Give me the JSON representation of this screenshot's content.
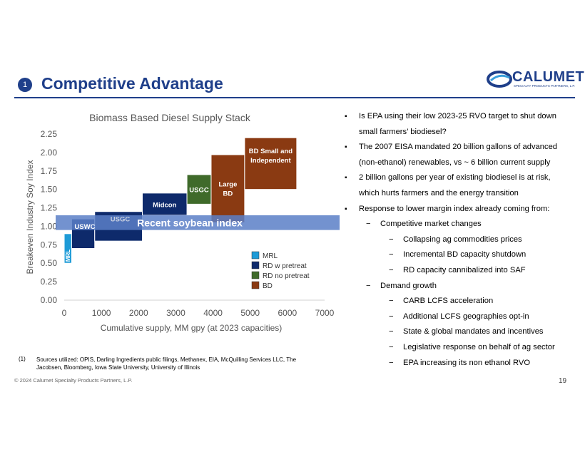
{
  "header": {
    "badge": "1",
    "title": "Competitive Advantage",
    "logo_text": "CALUMET",
    "logo_sub": "SPECIALTY PRODUCTS PARTNERS, L.P."
  },
  "colors": {
    "brand": "#1f3f8a",
    "mrl": "#1e9bd7",
    "rd_pretreat": "#0e2a6b",
    "rd_no_pretreat": "#3f6a2a",
    "bd": "#8a3a12",
    "band": "#5b7fc7"
  },
  "chart_data": {
    "type": "bar",
    "title": "Biomass Based Diesel Supply Stack",
    "xlabel": "Cumulative supply, MM gpy (at 2023 capacities)",
    "ylabel": "Breakeven Industry Soy Index",
    "xlim": [
      0,
      7000
    ],
    "ylim": [
      0,
      2.25
    ],
    "x_ticks": [
      "0",
      "1000",
      "2000",
      "3000",
      "4000",
      "5000",
      "6000",
      "7000"
    ],
    "y_ticks": [
      "0.00",
      "0.25",
      "0.50",
      "0.75",
      "1.00",
      "1.25",
      "1.50",
      "1.75",
      "2.00",
      "2.25"
    ],
    "band": {
      "label": "Recent soybean index",
      "y_low": 0.95,
      "y_high": 1.15
    },
    "blocks": [
      {
        "label": "MRL",
        "category": "MRL",
        "x_start": 0,
        "x_end": 200,
        "y_low": 0.5,
        "y_high": 0.9
      },
      {
        "label": "USWC",
        "category": "RD w pretreat",
        "x_start": 200,
        "x_end": 820,
        "y_low": 0.7,
        "y_high": 1.1
      },
      {
        "label": "USGC",
        "category": "RD w pretreat",
        "x_start": 820,
        "x_end": 2100,
        "y_low": 0.8,
        "y_high": 1.2
      },
      {
        "label": "Midcon",
        "category": "RD w pretreat",
        "x_start": 2100,
        "x_end": 3300,
        "y_low": 1.15,
        "y_high": 1.45
      },
      {
        "label": "USGC",
        "category": "RD no pretreat",
        "x_start": 3300,
        "x_end": 3950,
        "y_low": 1.3,
        "y_high": 1.7
      },
      {
        "label": "Large BD",
        "category": "BD",
        "x_start": 3950,
        "x_end": 4850,
        "y_low": 1.05,
        "y_high": 1.97
      },
      {
        "label": "BD Small and Independent",
        "category": "BD",
        "x_start": 4850,
        "x_end": 6250,
        "y_low": 1.5,
        "y_high": 2.2
      }
    ],
    "legend": [
      "MRL",
      "RD w pretreat",
      "RD no pretreat",
      "BD"
    ],
    "legend_position": "bottom-right"
  },
  "bullets": [
    {
      "level": 0,
      "text": "Is EPA using their low 2023-25 RVO target to shut down small farmers’ biodiesel?"
    },
    {
      "level": 0,
      "text": "The 2007 EISA mandated 20 billion gallons of advanced (non-ethanol) renewables, vs ~ 6 billion current supply"
    },
    {
      "level": 0,
      "text": "2 billion gallons per year of existing biodiesel is at risk, which hurts farmers and the energy transition"
    },
    {
      "level": 0,
      "text": "Response to lower margin index already coming from:"
    },
    {
      "level": 1,
      "text": "Competitive market changes"
    },
    {
      "level": 2,
      "text": "Collapsing ag commodities prices"
    },
    {
      "level": 2,
      "text": "Incremental BD capacity shutdown"
    },
    {
      "level": 2,
      "text": "RD capacity cannibalized into SAF"
    },
    {
      "level": 1,
      "text": "Demand growth"
    },
    {
      "level": 2,
      "text": "CARB LCFS acceleration"
    },
    {
      "level": 2,
      "text": "Additional LCFS geographies opt-in"
    },
    {
      "level": 2,
      "text": "State & global mandates and incentives"
    },
    {
      "level": 2,
      "text": "Legislative response on behalf of ag sector"
    },
    {
      "level": 2,
      "text": "EPA increasing its non ethanol RVO"
    }
  ],
  "footnote": {
    "num": "(1)",
    "text": "Sources utilized:  OPIS, Darling Ingredients public filings, Methanex, EIA, McQuilling Services LLC, The Jacobsen, Bloomberg, Iowa State University, University of Illinois"
  },
  "footer": {
    "copyright": "© 2024 Calumet Specialty Products Partners, L.P.",
    "page": "19"
  }
}
